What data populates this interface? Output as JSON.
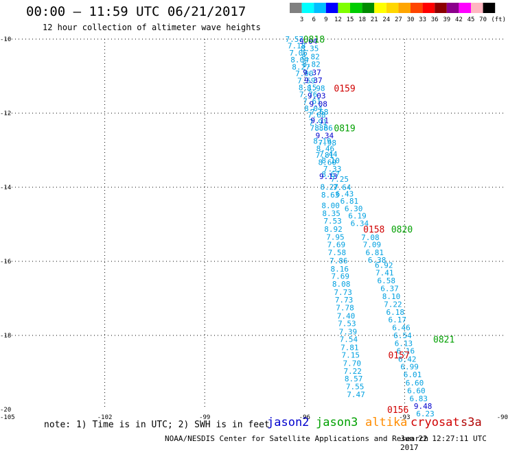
{
  "header": {
    "title": "00:00 – 11:59 UTC 06/21/2017",
    "subtitle": "12 hour collection of altimeter wave heights"
  },
  "footer": {
    "note": "note: 1) Time is in UTC; 2) SWH is in feet",
    "credit": "NOAA/NESDIS Center for Satellite Applications and Research",
    "generated": "Jun 22 12:27:11 UTC 2017"
  },
  "colorbar": {
    "labels": [
      "3",
      "6",
      "9",
      "12",
      "15",
      "18",
      "21",
      "24",
      "27",
      "30",
      "33",
      "36",
      "39",
      "42",
      "45",
      "70"
    ],
    "unit": "(ft)",
    "colors": [
      "#808080",
      "#00ffff",
      "#00bfff",
      "#0000ff",
      "#7fff00",
      "#00cd00",
      "#008b00",
      "#ffff00",
      "#ffd700",
      "#ffa500",
      "#ff4500",
      "#ff0000",
      "#8b0000",
      "#8b008b",
      "#ff00ff",
      "#ffb6c1",
      "#000000"
    ]
  },
  "legend": [
    {
      "name": "jason2",
      "color": "#0000cd"
    },
    {
      "name": "jason3",
      "color": "#00a000"
    },
    {
      "name": "altika",
      "color": "#ff8c00"
    },
    {
      "name": "cryosat",
      "color": "#d00000"
    },
    {
      "name": "s3a",
      "color": "#b00000"
    }
  ],
  "chart_data": {
    "type": "scatter",
    "xlim": [
      -105,
      -90
    ],
    "ylim": [
      -20,
      -10
    ],
    "x_ticks": [
      -105,
      -102,
      -99,
      -96,
      -93,
      -90
    ],
    "y_ticks": [
      -10,
      -12,
      -14,
      -16,
      -18,
      -20
    ],
    "grid": true,
    "series": [
      {
        "name": "track-a",
        "points": [
          {
            "x": -96.31,
            "y": -10.0,
            "v": "7.57"
          },
          {
            "x": -96.24,
            "y": -10.18,
            "v": "7.18"
          },
          {
            "x": -96.19,
            "y": -10.37,
            "v": "7.06"
          },
          {
            "x": -96.15,
            "y": -10.56,
            "v": "8.04"
          },
          {
            "x": -96.11,
            "y": -10.75,
            "v": "8.27"
          },
          {
            "x": -96.01,
            "y": -10.93,
            "v": "7.90"
          },
          {
            "x": -95.95,
            "y": -11.12,
            "v": "7.59"
          },
          {
            "x": -95.91,
            "y": -11.31,
            "v": "8.15"
          },
          {
            "x": -95.89,
            "y": -11.49,
            "v": "7.76"
          },
          {
            "x": -95.78,
            "y": -11.68,
            "v": "7.61"
          },
          {
            "x": -95.74,
            "y": -11.87,
            "v": "8.04"
          },
          {
            "x": -95.64,
            "y": -12.05,
            "v": "7.68"
          },
          {
            "x": -95.6,
            "y": -12.24,
            "v": "7.91"
          },
          {
            "x": -95.57,
            "y": -12.4,
            "v": "7.88"
          },
          {
            "x": -95.47,
            "y": -12.75,
            "v": "8.19"
          },
          {
            "x": -95.38,
            "y": -12.95,
            "v": "8.46"
          },
          {
            "x": -95.4,
            "y": -13.13,
            "v": "7.81"
          },
          {
            "x": -95.32,
            "y": -13.32,
            "v": "8.60"
          },
          {
            "x": -95.22,
            "y": -13.65,
            "v": "8.67"
          },
          {
            "x": -95.26,
            "y": -13.99,
            "v": "8.27"
          },
          {
            "x": -95.23,
            "y": -14.2,
            "v": "8.63"
          },
          {
            "x": -95.22,
            "y": -14.49,
            "v": "8.00"
          },
          {
            "x": -95.2,
            "y": -14.7,
            "v": "8.35"
          },
          {
            "x": -95.16,
            "y": -14.91,
            "v": "7.53"
          },
          {
            "x": -95.14,
            "y": -15.13,
            "v": "8.92"
          },
          {
            "x": -95.08,
            "y": -15.34,
            "v": "7.95"
          },
          {
            "x": -95.05,
            "y": -15.55,
            "v": "7.69"
          },
          {
            "x": -95.03,
            "y": -15.76,
            "v": "7.58"
          },
          {
            "x": -94.98,
            "y": -15.98,
            "v": "7.86"
          },
          {
            "x": -94.95,
            "y": -16.2,
            "v": "8.16"
          },
          {
            "x": -94.93,
            "y": -16.4,
            "v": "7.69"
          },
          {
            "x": -94.9,
            "y": -16.61,
            "v": "8.08"
          },
          {
            "x": -94.85,
            "y": -16.83,
            "v": "7.73"
          },
          {
            "x": -94.82,
            "y": -17.04,
            "v": "7.73"
          },
          {
            "x": -94.79,
            "y": -17.25,
            "v": "7.78"
          },
          {
            "x": -94.76,
            "y": -17.47,
            "v": "7.40"
          },
          {
            "x": -94.73,
            "y": -17.68,
            "v": "7.53"
          },
          {
            "x": -94.7,
            "y": -17.9,
            "v": "7.39"
          },
          {
            "x": -94.68,
            "y": -18.1,
            "v": "7.54"
          },
          {
            "x": -94.65,
            "y": -18.32,
            "v": "7.81"
          },
          {
            "x": -94.62,
            "y": -18.53,
            "v": "7.15"
          },
          {
            "x": -94.58,
            "y": -18.75,
            "v": "7.70"
          },
          {
            "x": -94.56,
            "y": -18.96,
            "v": "7.22"
          },
          {
            "x": -94.53,
            "y": -19.17,
            "v": "8.57"
          },
          {
            "x": -94.49,
            "y": -19.38,
            "v": "7.55"
          },
          {
            "x": -94.46,
            "y": -19.59,
            "v": "7.47"
          }
        ]
      },
      {
        "name": "track-b",
        "points": [
          {
            "x": -95.89,
            "y": -10.06,
            "v": "9.04"
          },
          {
            "x": -95.85,
            "y": -10.25,
            "v": "8.35"
          },
          {
            "x": -95.82,
            "y": -10.47,
            "v": "8.82"
          },
          {
            "x": -95.8,
            "y": -10.68,
            "v": "8.82"
          },
          {
            "x": -95.78,
            "y": -10.9,
            "v": "9.37"
          },
          {
            "x": -95.74,
            "y": -11.11,
            "v": "9.37"
          },
          {
            "x": -95.66,
            "y": -11.32,
            "v": "8.98"
          },
          {
            "x": -95.64,
            "y": -11.53,
            "v": "9.03"
          },
          {
            "x": -95.59,
            "y": -11.75,
            "v": "9.08"
          },
          {
            "x": -95.56,
            "y": -11.96,
            "v": "7.68"
          },
          {
            "x": -95.55,
            "y": -12.19,
            "v": "9.11"
          },
          {
            "x": -95.43,
            "y": -12.4,
            "v": "8.66"
          },
          {
            "x": -95.4,
            "y": -12.6,
            "v": "9.34"
          },
          {
            "x": -95.32,
            "y": -12.8,
            "v": "7.98"
          },
          {
            "x": -95.29,
            "y": -13.1,
            "v": "7.44"
          },
          {
            "x": -95.22,
            "y": -13.28,
            "v": "8.10"
          },
          {
            "x": -95.17,
            "y": -13.5,
            "v": "7.33"
          },
          {
            "x": -95.29,
            "y": -13.7,
            "v": "9.13"
          },
          {
            "x": -94.95,
            "y": -13.78,
            "v": "7.25"
          },
          {
            "x": -94.88,
            "y": -14.0,
            "v": "7.64"
          },
          {
            "x": -94.8,
            "y": -14.18,
            "v": "6.43"
          },
          {
            "x": -94.66,
            "y": -14.37,
            "v": "6.81"
          },
          {
            "x": -94.53,
            "y": -14.57,
            "v": "6.30"
          },
          {
            "x": -94.42,
            "y": -14.77,
            "v": "6.19"
          },
          {
            "x": -94.35,
            "y": -14.97,
            "v": "6.34"
          },
          {
            "x": -94.03,
            "y": -15.35,
            "v": "7.08"
          },
          {
            "x": -93.98,
            "y": -15.55,
            "v": "7.09"
          },
          {
            "x": -93.9,
            "y": -15.76,
            "v": "6.81"
          },
          {
            "x": -93.83,
            "y": -15.96,
            "v": "6.38"
          },
          {
            "x": -93.62,
            "y": -16.1,
            "v": "6.92"
          },
          {
            "x": -93.6,
            "y": -16.31,
            "v": "7.41"
          },
          {
            "x": -93.55,
            "y": -16.52,
            "v": "6.58"
          },
          {
            "x": -93.45,
            "y": -16.73,
            "v": "6.37"
          },
          {
            "x": -93.4,
            "y": -16.94,
            "v": "8.10"
          },
          {
            "x": -93.35,
            "y": -17.16,
            "v": "7.22"
          },
          {
            "x": -93.28,
            "y": -17.37,
            "v": "6.18"
          },
          {
            "x": -93.22,
            "y": -17.57,
            "v": "6.17"
          },
          {
            "x": -93.1,
            "y": -17.79,
            "v": "6.46"
          },
          {
            "x": -93.06,
            "y": -18.0,
            "v": "6.54"
          },
          {
            "x": -93.03,
            "y": -18.21,
            "v": "6.13"
          },
          {
            "x": -92.97,
            "y": -18.42,
            "v": "6.16"
          },
          {
            "x": -92.92,
            "y": -18.64,
            "v": "6.42"
          },
          {
            "x": -92.85,
            "y": -18.84,
            "v": "6.99"
          },
          {
            "x": -92.76,
            "y": -19.06,
            "v": "6.01"
          },
          {
            "x": -92.7,
            "y": -19.28,
            "v": "6.60"
          },
          {
            "x": -92.65,
            "y": -19.49,
            "v": "6.60"
          },
          {
            "x": -92.58,
            "y": -19.7,
            "v": "6.83"
          },
          {
            "x": -92.45,
            "y": -19.91,
            "v": "9.48"
          },
          {
            "x": -92.38,
            "y": -20.11,
            "v": "6.23"
          }
        ]
      }
    ],
    "time_labels": [
      {
        "x": -95.72,
        "y": -10.0,
        "text": "0818",
        "satellite": "jason3"
      },
      {
        "x": -94.8,
        "y": -11.32,
        "text": "0159",
        "satellite": "cryosat"
      },
      {
        "x": -94.8,
        "y": -12.4,
        "text": "0819",
        "satellite": "jason3"
      },
      {
        "x": -93.92,
        "y": -15.13,
        "text": "0158",
        "satellite": "cryosat"
      },
      {
        "x": -93.08,
        "y": -15.13,
        "text": "0820",
        "satellite": "jason3"
      },
      {
        "x": -93.17,
        "y": -18.53,
        "text": "0157",
        "satellite": "cryosat"
      },
      {
        "x": -91.82,
        "y": -18.1,
        "text": "0821",
        "satellite": "jason3"
      },
      {
        "x": -93.2,
        "y": -20.0,
        "text": "0156",
        "satellite": "cryosat"
      }
    ]
  }
}
